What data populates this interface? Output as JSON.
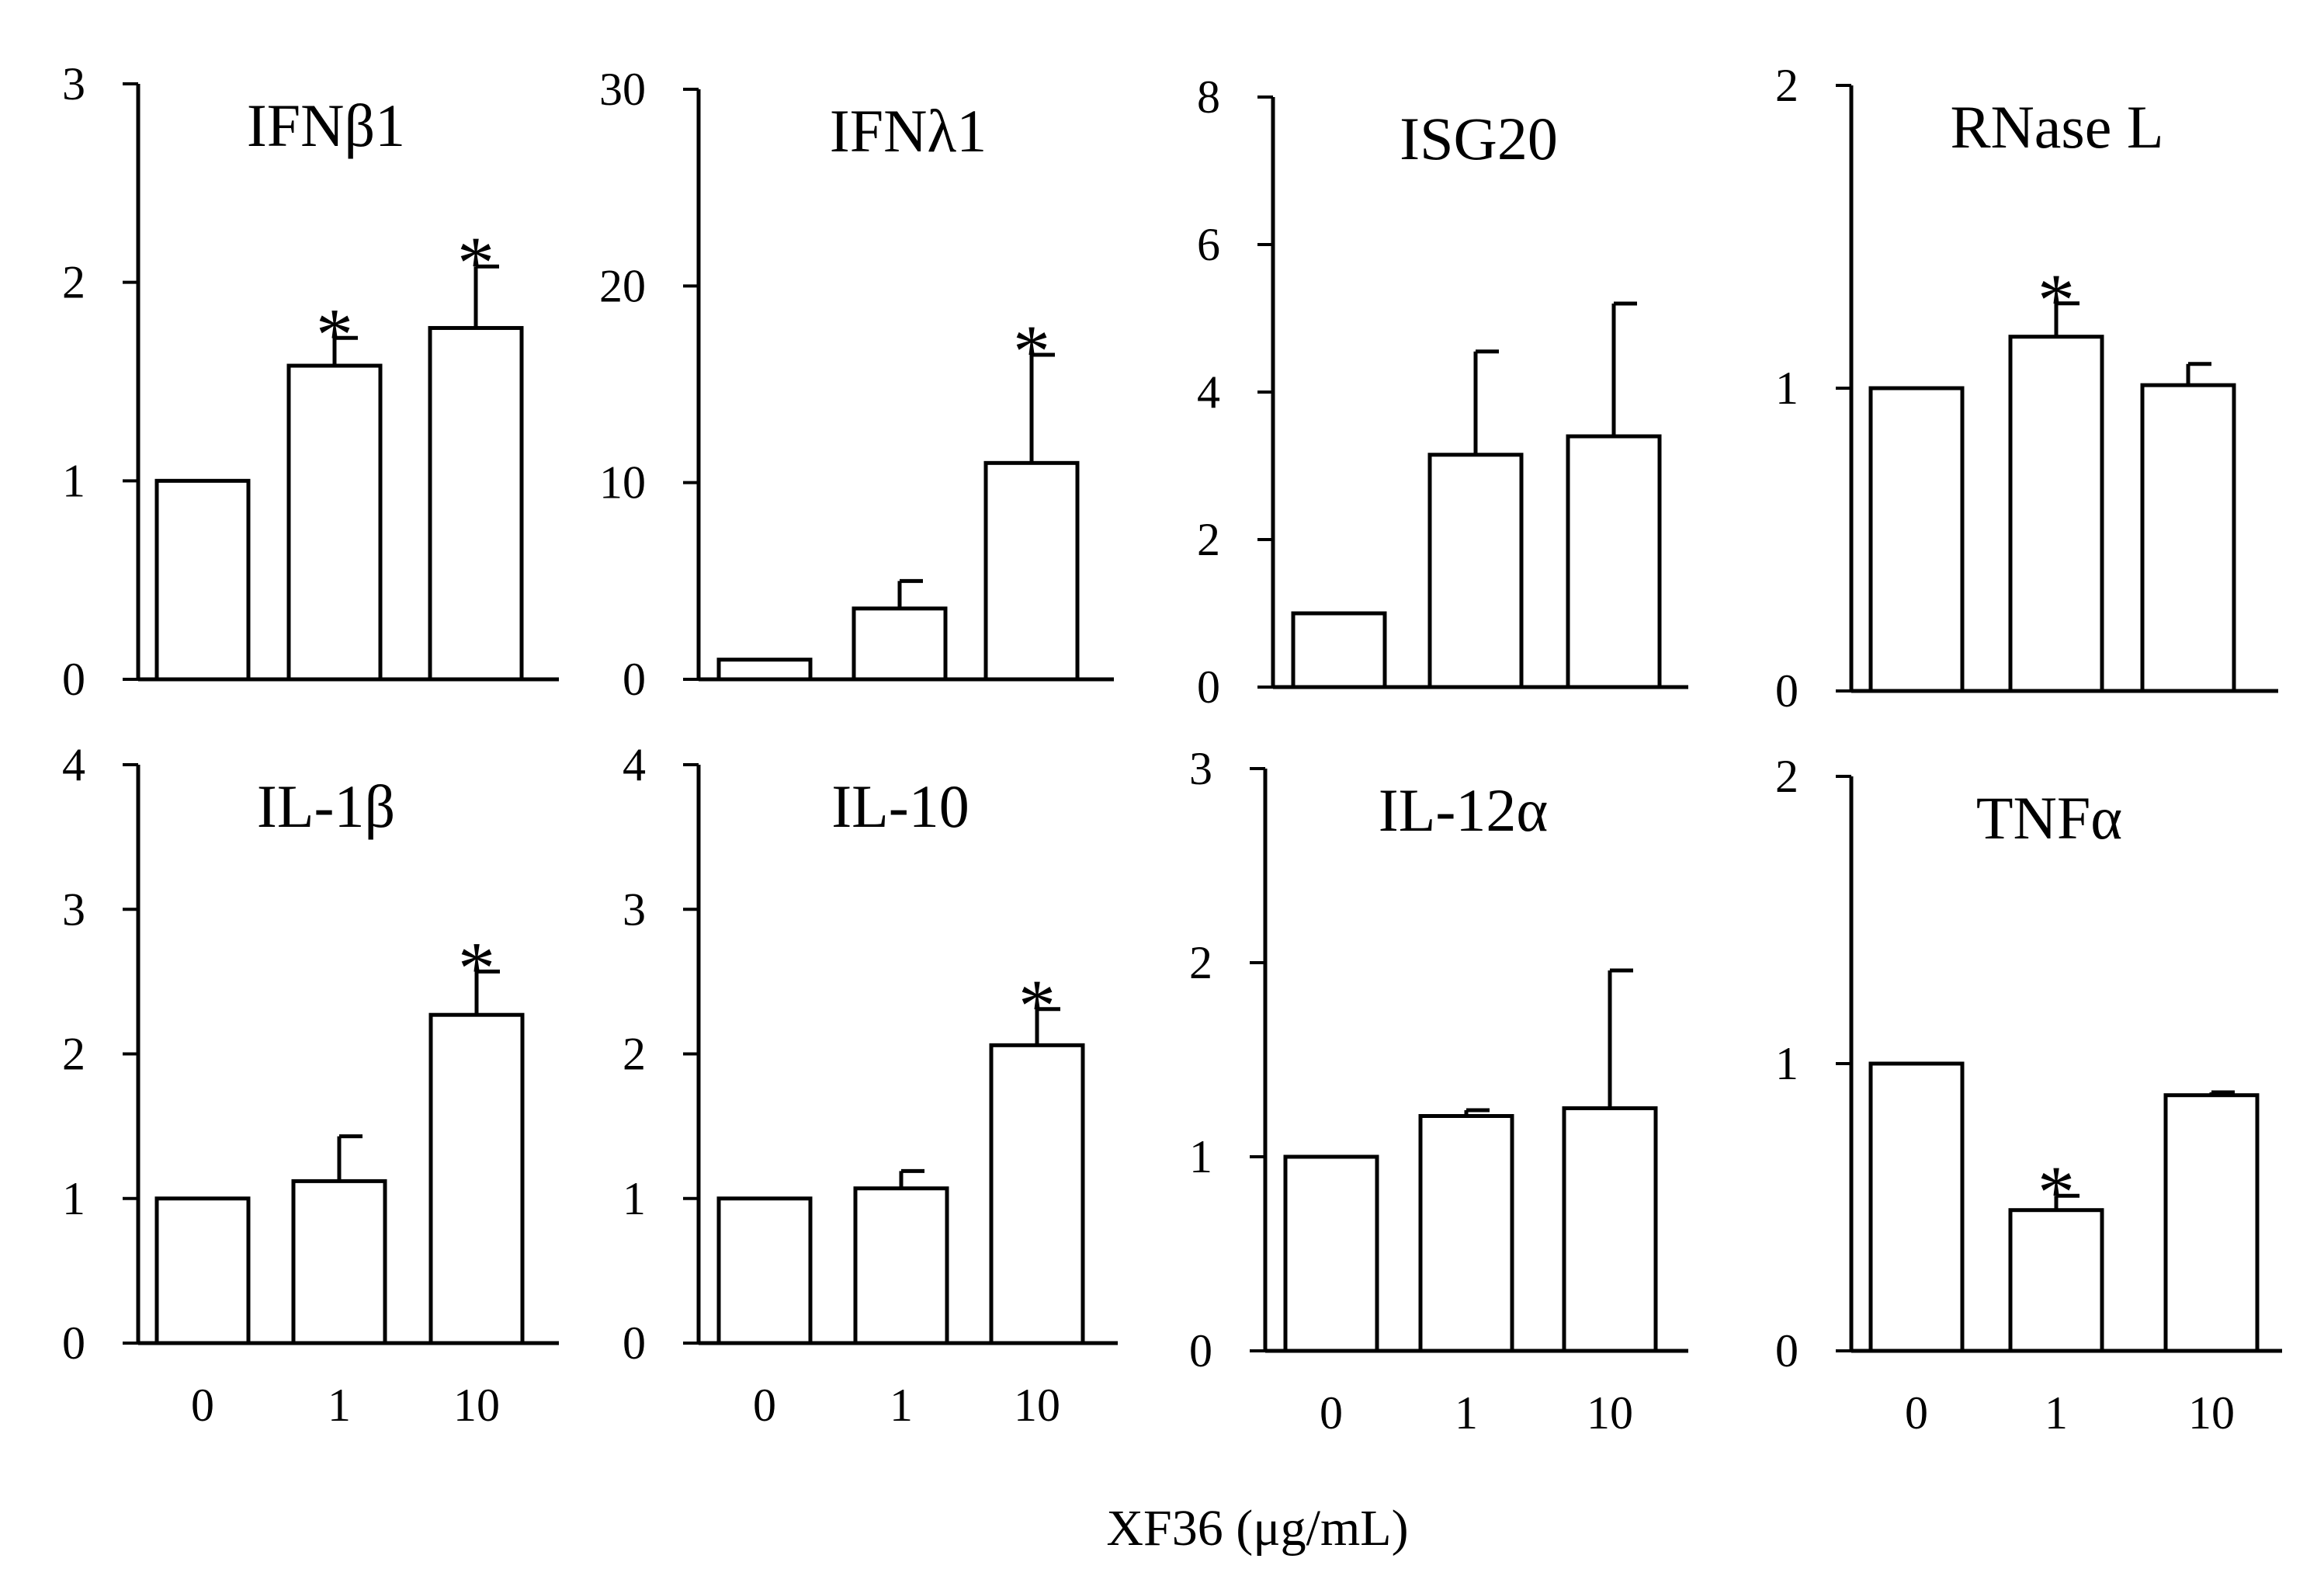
{
  "chart_data": [
    {
      "type": "bar",
      "title": "IFNβ1",
      "categories": [
        "0",
        "1",
        "10"
      ],
      "values": [
        1.0,
        1.58,
        1.77
      ],
      "errors": [
        0,
        0.14,
        0.31
      ],
      "significant": [
        false,
        true,
        true
      ],
      "ylim": [
        0,
        3
      ],
      "yticks": [
        "0",
        "1",
        "2",
        "3"
      ]
    },
    {
      "type": "bar",
      "title": "IFNλ1",
      "categories": [
        "0",
        "1",
        "10"
      ],
      "values": [
        1.0,
        3.6,
        11.0
      ],
      "errors": [
        0,
        1.4,
        5.5
      ],
      "significant": [
        false,
        false,
        true
      ],
      "ylim": [
        0,
        30
      ],
      "yticks": [
        "0",
        "10",
        "20",
        "30"
      ]
    },
    {
      "type": "bar",
      "title": "ISG20",
      "categories": [
        "0",
        "1",
        "10"
      ],
      "values": [
        1.0,
        3.15,
        3.4
      ],
      "errors": [
        0,
        1.4,
        1.8
      ],
      "significant": [
        false,
        false,
        false
      ],
      "ylim": [
        0,
        8
      ],
      "yticks": [
        "0",
        "2",
        "4",
        "6",
        "8"
      ]
    },
    {
      "type": "bar",
      "title": "RNase L",
      "categories": [
        "0",
        "1",
        "10"
      ],
      "values": [
        1.0,
        1.17,
        1.01
      ],
      "errors": [
        0,
        0.11,
        0.07
      ],
      "significant": [
        false,
        true,
        false
      ],
      "ylim": [
        0,
        2
      ],
      "yticks": [
        "0",
        "1",
        "2"
      ]
    },
    {
      "type": "bar",
      "title": "IL-1β",
      "categories": [
        "0",
        "1",
        "10"
      ],
      "values": [
        1.0,
        1.12,
        2.27
      ],
      "errors": [
        0,
        0.31,
        0.3
      ],
      "significant": [
        false,
        false,
        true
      ],
      "ylim": [
        0,
        4
      ],
      "yticks": [
        "0",
        "1",
        "2",
        "3",
        "4"
      ]
    },
    {
      "type": "bar",
      "title": "IL-10",
      "categories": [
        "0",
        "1",
        "10"
      ],
      "values": [
        1.0,
        1.07,
        2.06
      ],
      "errors": [
        0,
        0.12,
        0.25
      ],
      "significant": [
        false,
        false,
        true
      ],
      "ylim": [
        0,
        4
      ],
      "yticks": [
        "0",
        "1",
        "2",
        "3",
        "4"
      ]
    },
    {
      "type": "bar",
      "title": "IL-12α",
      "categories": [
        "0",
        "1",
        "10"
      ],
      "values": [
        1.0,
        1.21,
        1.25
      ],
      "errors": [
        0,
        0.03,
        0.71
      ],
      "significant": [
        false,
        false,
        false
      ],
      "ylim": [
        0,
        3
      ],
      "yticks": [
        "0",
        "1",
        "2",
        "3"
      ]
    },
    {
      "type": "bar",
      "title": "TNFα",
      "categories": [
        "0",
        "1",
        "10"
      ],
      "values": [
        1.0,
        0.49,
        0.89
      ],
      "errors": [
        0,
        0.05,
        0.01
      ],
      "significant": [
        false,
        true,
        false
      ],
      "ylim": [
        0,
        2
      ],
      "yticks": [
        "0",
        "1",
        "2"
      ]
    }
  ],
  "x_axis_title": "XF36 (μg/mL)",
  "significance_marker": "*",
  "colors": {
    "bar_fill": "#ffffff",
    "stroke": "#000000"
  }
}
